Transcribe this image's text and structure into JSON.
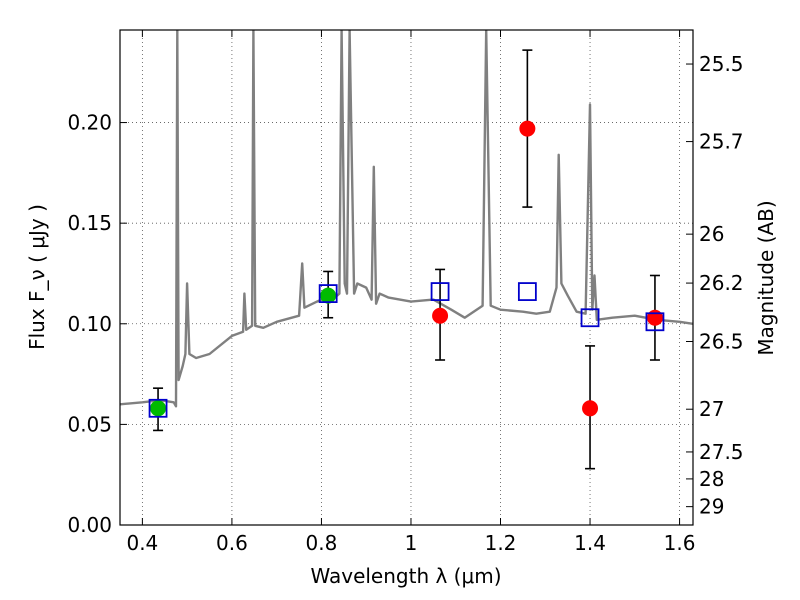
{
  "chart_data": {
    "type": "scatter",
    "xlabel": "Wavelength  λ (μm)",
    "ylabel": "Flux  F_ν  ( μJy )",
    "ylabel_right": "Magnitude (AB)",
    "xlim": [
      0.35,
      1.63
    ],
    "ylim": [
      0.0,
      0.246
    ],
    "grid": true,
    "grid_style": "dotted",
    "x_ticks": [
      0.4,
      0.6,
      0.8,
      1.0,
      1.2,
      1.4,
      1.6
    ],
    "x_tick_labels": [
      "0.4",
      "0.6",
      "0.8",
      "1",
      "1.2",
      "1.4",
      "1.6"
    ],
    "y_ticks": [
      0.0,
      0.05,
      0.1,
      0.15,
      0.2
    ],
    "y_tick_labels": [
      "0.00",
      "0.05",
      "0.10",
      "0.15",
      "0.20"
    ],
    "right_axis": {
      "ticks": [
        {
          "value": 25.5,
          "label": "25.5"
        },
        {
          "value": 25.7,
          "label": "25.7"
        },
        {
          "value": 26.0,
          "label": "26"
        },
        {
          "value": 26.2,
          "label": "26.2"
        },
        {
          "value": 26.5,
          "label": "26.5"
        },
        {
          "value": 27.0,
          "label": "27"
        },
        {
          "value": 27.5,
          "label": "27.5"
        },
        {
          "value": 28.0,
          "label": "28"
        },
        {
          "value": 29.0,
          "label": "29"
        }
      ]
    },
    "series": [
      {
        "kind": "spectrum_line",
        "color": "#808080",
        "points": [
          [
            0.35,
            0.06
          ],
          [
            0.4,
            0.061
          ],
          [
            0.44,
            0.062
          ],
          [
            0.47,
            0.061
          ],
          [
            0.475,
            0.059
          ],
          [
            0.478,
            0.246
          ],
          [
            0.481,
            0.072
          ],
          [
            0.49,
            0.079
          ],
          [
            0.496,
            0.085
          ],
          [
            0.5,
            0.12
          ],
          [
            0.505,
            0.085
          ],
          [
            0.52,
            0.083
          ],
          [
            0.55,
            0.085
          ],
          [
            0.6,
            0.094
          ],
          [
            0.625,
            0.096
          ],
          [
            0.628,
            0.115
          ],
          [
            0.632,
            0.097
          ],
          [
            0.645,
            0.099
          ],
          [
            0.648,
            0.246
          ],
          [
            0.652,
            0.099
          ],
          [
            0.67,
            0.098
          ],
          [
            0.7,
            0.101
          ],
          [
            0.75,
            0.104
          ],
          [
            0.757,
            0.13
          ],
          [
            0.762,
            0.108
          ],
          [
            0.79,
            0.111
          ],
          [
            0.82,
            0.114
          ],
          [
            0.83,
            0.113
          ],
          [
            0.84,
            0.115
          ],
          [
            0.845,
            0.246
          ],
          [
            0.852,
            0.12
          ],
          [
            0.857,
            0.115
          ],
          [
            0.863,
            0.246
          ],
          [
            0.873,
            0.115
          ],
          [
            0.88,
            0.12
          ],
          [
            0.9,
            0.118
          ],
          [
            0.912,
            0.112
          ],
          [
            0.917,
            0.178
          ],
          [
            0.922,
            0.11
          ],
          [
            0.93,
            0.115
          ],
          [
            0.95,
            0.113
          ],
          [
            1.0,
            0.111
          ],
          [
            1.05,
            0.112
          ],
          [
            1.09,
            0.107
          ],
          [
            1.12,
            0.103
          ],
          [
            1.16,
            0.109
          ],
          [
            1.168,
            0.246
          ],
          [
            1.178,
            0.109
          ],
          [
            1.2,
            0.107
          ],
          [
            1.25,
            0.106
          ],
          [
            1.28,
            0.105
          ],
          [
            1.31,
            0.106
          ],
          [
            1.325,
            0.118
          ],
          [
            1.33,
            0.184
          ],
          [
            1.336,
            0.12
          ],
          [
            1.35,
            0.114
          ],
          [
            1.37,
            0.106
          ],
          [
            1.39,
            0.105
          ],
          [
            1.4,
            0.209
          ],
          [
            1.405,
            0.107
          ],
          [
            1.41,
            0.124
          ],
          [
            1.415,
            0.102
          ],
          [
            1.45,
            0.103
          ],
          [
            1.5,
            0.104
          ],
          [
            1.55,
            0.102
          ],
          [
            1.6,
            0.101
          ],
          [
            1.63,
            0.1
          ]
        ]
      },
      {
        "kind": "red_points",
        "color": "#ff0000",
        "points": [
          {
            "x": 1.065,
            "y": 0.104,
            "ylow": 0.082,
            "yhigh": 0.127
          },
          {
            "x": 1.26,
            "y": 0.197,
            "ylow": 0.158,
            "yhigh": 0.236
          },
          {
            "x": 1.4,
            "y": 0.058,
            "ylow": 0.028,
            "yhigh": 0.089
          },
          {
            "x": 1.545,
            "y": 0.103,
            "ylow": 0.082,
            "yhigh": 0.124
          }
        ]
      },
      {
        "kind": "green_points",
        "color": "#00bb00",
        "points": [
          {
            "x": 0.435,
            "y": 0.058,
            "ylow": 0.047,
            "yhigh": 0.068
          },
          {
            "x": 0.815,
            "y": 0.114,
            "ylow": 0.103,
            "yhigh": 0.126
          }
        ]
      },
      {
        "kind": "blue_open_squares",
        "color": "#0000cc",
        "points": [
          {
            "x": 0.435,
            "y": 0.058
          },
          {
            "x": 0.815,
            "y": 0.115
          },
          {
            "x": 1.065,
            "y": 0.116
          },
          {
            "x": 1.26,
            "y": 0.116
          },
          {
            "x": 1.4,
            "y": 0.103
          },
          {
            "x": 1.545,
            "y": 0.101
          }
        ]
      }
    ]
  }
}
